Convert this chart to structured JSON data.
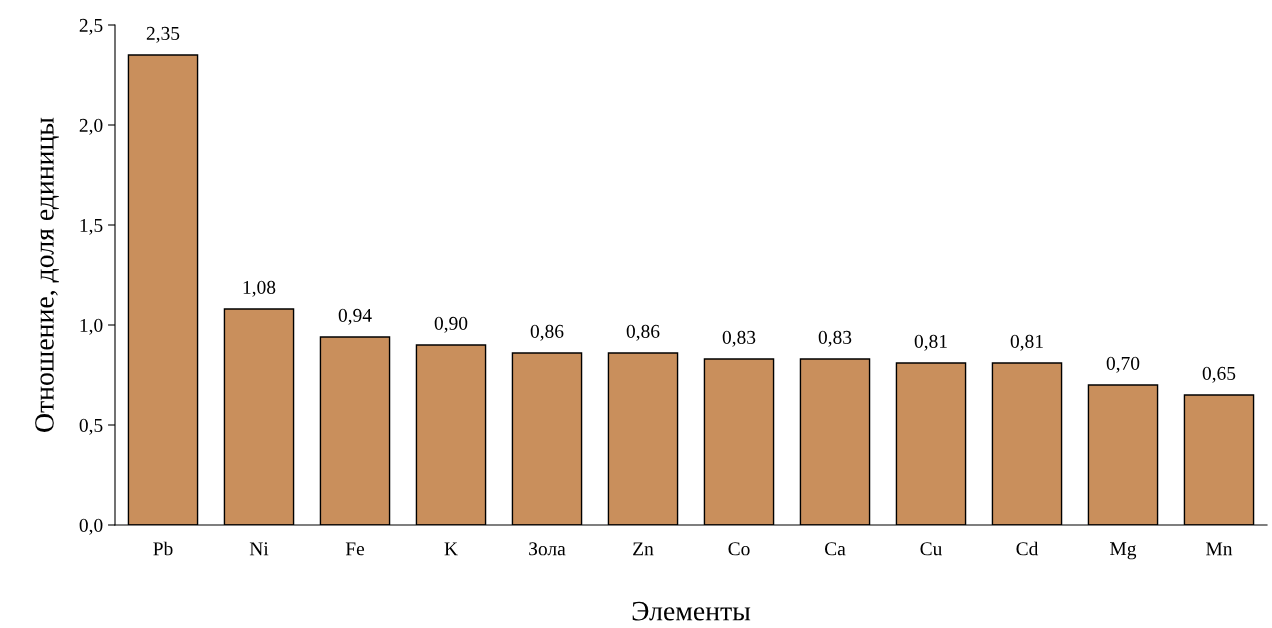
{
  "chart_data": {
    "type": "bar",
    "xlabel": "Элементы",
    "ylabel": "Отношение, доля единицы",
    "categories": [
      "Pb",
      "Ni",
      "Fe",
      "K",
      "Зола",
      "Zn",
      "Co",
      "Ca",
      "Cu",
      "Cd",
      "Mg",
      "Mn"
    ],
    "values": [
      2.35,
      1.08,
      0.94,
      0.9,
      0.86,
      0.86,
      0.83,
      0.83,
      0.81,
      0.81,
      0.7,
      0.65
    ],
    "value_labels": [
      "2,35",
      "1,08",
      "0,94",
      "0,90",
      "0,86",
      "0,86",
      "0,83",
      "0,83",
      "0,81",
      "0,81",
      "0,70",
      "0,65"
    ],
    "color": "#c98f5c",
    "ylim": [
      0,
      2.5
    ],
    "yticks": [
      {
        "value": 0,
        "label": "0,0"
      },
      {
        "value": 0.5,
        "label": "0,5"
      },
      {
        "value": 1.0,
        "label": "1,0"
      },
      {
        "value": 1.5,
        "label": "1,5"
      },
      {
        "value": 2.0,
        "label": "2,0"
      },
      {
        "value": 2.5,
        "label": "2,5"
      }
    ],
    "grid": false,
    "legend": false
  }
}
